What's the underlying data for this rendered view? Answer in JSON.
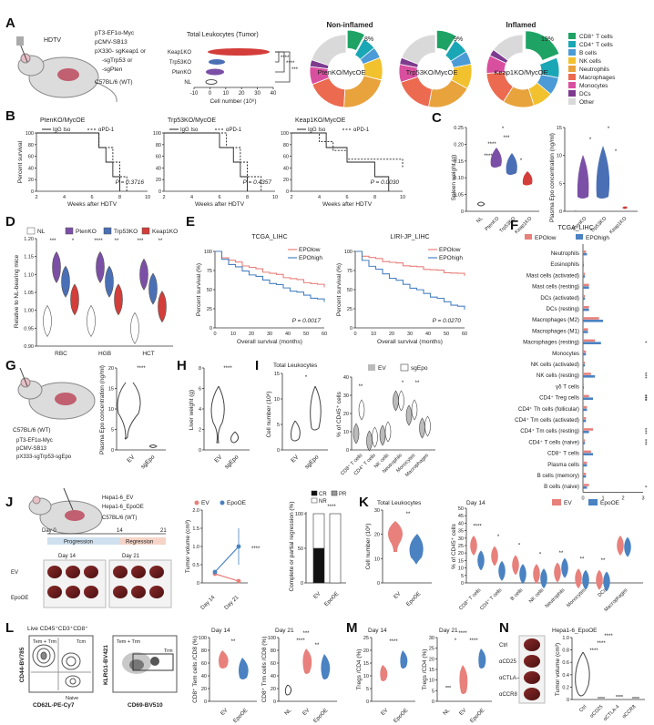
{
  "panel_labels": [
    "A",
    "B",
    "C",
    "D",
    "E",
    "F",
    "G",
    "H",
    "I",
    "J",
    "K",
    "L",
    "M",
    "N"
  ],
  "colors": {
    "nl": "#ffffff",
    "pten": "#7b4fa6",
    "trp53": "#4a6fb5",
    "keap1": "#d33d3a",
    "ev": "#e8807b",
    "epo": "#4a82c2",
    "grey": "#999999"
  },
  "panel_a": {
    "hdtv": "HDTV",
    "bullets": [
      "pT3-EF1α-Myc",
      "pCMV-SB13",
      "pX330- sgKeap1 or",
      "-sgTrp53 or",
      "-sgPten"
    ],
    "strain": "C57BL/6 (WT)",
    "chart_title": "Total Leukocytes (Tumor)",
    "rows": [
      "Keap1KO",
      "Trp53KO",
      "PtenKO",
      "NL"
    ],
    "xlabel": "Cell number (10⁶)",
    "xticks": [
      "-10",
      "0",
      "10",
      "20",
      "30",
      "40"
    ],
    "sig": [
      "****",
      "****",
      "***"
    ],
    "donut_titles": [
      "Non-inflamed",
      "Inflamed"
    ],
    "donut_labels": [
      "PtenKO/MycOE",
      "Trp53KO/MycOE",
      "Keap1KO/MycOE"
    ],
    "donut_pct": [
      "8%",
      "9%",
      "19%"
    ],
    "legend": [
      {
        "name": "CD8⁺ T cells",
        "color": "#1fa365"
      },
      {
        "name": "CD4⁺ T cells",
        "color": "#1aa7b5"
      },
      {
        "name": "B cells",
        "color": "#4b9bd6"
      },
      {
        "name": "NK cells",
        "color": "#f2c12e"
      },
      {
        "name": "Neutrophils",
        "color": "#e8a33d"
      },
      {
        "name": "Macrophages",
        "color": "#ec6a4f"
      },
      {
        "name": "Monocytes",
        "color": "#d94fa0"
      },
      {
        "name": "DCs",
        "color": "#7d3b8e"
      },
      {
        "name": "Other",
        "color": "#d9d9d9"
      }
    ]
  },
  "chart_data": [
    {
      "type": "pie",
      "id": "donut1",
      "title": "PtenKO/MycOE",
      "categories": [
        "CD8+ T cells",
        "CD4+ T cells",
        "B cells",
        "NK cells",
        "Neutrophils",
        "Macrophages",
        "Monocytes",
        "DCs",
        "Other"
      ],
      "values": [
        8,
        6,
        5,
        10,
        22,
        18,
        8,
        3,
        20
      ]
    },
    {
      "type": "pie",
      "id": "donut2",
      "title": "Trp53KO/MycOE",
      "categories": [
        "CD8+ T cells",
        "CD4+ T cells",
        "B cells",
        "NK cells",
        "Neutrophils",
        "Macrophages",
        "Monocytes",
        "DCs",
        "Other"
      ],
      "values": [
        9,
        7,
        6,
        11,
        20,
        17,
        8,
        3,
        19
      ]
    },
    {
      "type": "pie",
      "id": "donut3",
      "title": "Keap1KO/MycOE",
      "categories": [
        "CD8+ T cells",
        "CD4+ T cells",
        "B cells",
        "NK cells",
        "Neutrophils",
        "Macrophages",
        "Monocytes",
        "DCs",
        "Other"
      ],
      "values": [
        19,
        9,
        8,
        9,
        14,
        15,
        8,
        3,
        15
      ]
    },
    {
      "type": "line",
      "id": "survB",
      "titles": [
        "PtenKO/MycOE",
        "Trp53KO/MycOE",
        "Keap1KO/MycOE"
      ],
      "series_names": [
        "IgG Iso",
        "αPD-1"
      ],
      "ylabel": "Percent survival",
      "xlabel": "Weeks after HDTV",
      "xlim": [
        2,
        10
      ],
      "ylim": [
        0,
        100
      ],
      "p_values": [
        "P = 0.3716",
        "P = 0.4357",
        "P = 0.0030"
      ]
    },
    {
      "type": "line",
      "id": "survE",
      "titles": [
        "TCGA_LIHC",
        "LIRI-JP_LIHC"
      ],
      "series_names": [
        "EPOlow",
        "EPOhigh"
      ],
      "ylabel": "Percent survival (%)",
      "xlabel": "Overall survival (months)",
      "xlim": [
        0,
        60
      ],
      "ylim": [
        0,
        100
      ],
      "p_values": [
        "P = 0.0017",
        "P = 0.0270"
      ],
      "low_endpoints": [
        55,
        70
      ],
      "high_endpoints": [
        35,
        25
      ]
    },
    {
      "type": "bar",
      "id": "barJ",
      "categories": [
        "EV",
        "EpoOE"
      ],
      "series": [
        {
          "name": "CR",
          "values": [
            50,
            0
          ]
        },
        {
          "name": "PR",
          "values": [
            0,
            0
          ]
        },
        {
          "name": "NR",
          "values": [
            50,
            100
          ]
        }
      ],
      "ylabel": "Complete or partial regression (%)",
      "ylim": [
        0,
        100
      ]
    },
    {
      "type": "line",
      "id": "tumorJ",
      "categories": [
        "Day 14",
        "Day 21"
      ],
      "series": [
        {
          "name": "EV",
          "values": [
            0.25,
            0.05
          ]
        },
        {
          "name": "EpoOE",
          "values": [
            0.3,
            1.0
          ]
        }
      ],
      "ylabel": "Tumor volume (cm³)",
      "ylim": [
        0,
        2.0
      ]
    },
    {
      "type": "bar",
      "id": "cibersortF",
      "title": "TCGA_LIHC",
      "categories": [
        "Neutrophils",
        "Eosinophils",
        "Mast cells (activated)",
        "Mast cells (resting)",
        "DCs (activated)",
        "DCs (resting)",
        "Macrophages (M2)",
        "Macrophages (M1)",
        "Macrophages (resting)",
        "Monocytes",
        "NK cells (activated)",
        "NK cells (resting)",
        "γδ T cells",
        "CD4⁺ Treg cells",
        "CD4⁺ Th cells (follicular)",
        "CD4⁺ Tm cells (activated)",
        "CD4⁺ Tm cells (resting)",
        "CD4⁺ T cells (naive)",
        "CD8⁺ T cells",
        "Plasma cells",
        "B cells (memory)",
        "B cells (naive)"
      ],
      "series": [
        {
          "name": "EPOlow",
          "values": [
            0.15,
            0.05,
            0.1,
            0.3,
            0.1,
            0.3,
            0.8,
            0.25,
            0.6,
            0.15,
            0.1,
            0.4,
            0.05,
            0.3,
            0.2,
            0.15,
            0.5,
            0.1,
            0.4,
            0.2,
            0.15,
            0.3
          ]
        },
        {
          "name": "EPOhigh",
          "values": [
            0.2,
            0.05,
            0.1,
            0.3,
            0.1,
            0.3,
            1.0,
            0.25,
            0.9,
            0.15,
            0.1,
            0.6,
            0.05,
            0.5,
            0.2,
            0.15,
            0.3,
            0.1,
            0.5,
            0.2,
            0.15,
            0.2
          ]
        }
      ],
      "xticks": [
        "0",
        "1",
        "2",
        "3"
      ],
      "xlim": [
        0,
        3
      ]
    }
  ],
  "panel_c": {
    "ylabel1": "Spleen weight (g)",
    "ylabel2": "Plasma Epo concentration (ng/ml)",
    "yticks1": [
      "0",
      "0.05",
      "0.10",
      "0.15",
      "0.20",
      "0.25"
    ],
    "yticks2": [
      "0",
      "5",
      "10",
      "15"
    ],
    "groups1": [
      "NL",
      "PtenKO",
      "Trp53KO",
      "Keap1KO"
    ],
    "groups2": [
      "PtenKO",
      "Trp53KO",
      "Keap1KO"
    ],
    "sig1": [
      "*",
      "***",
      "****",
      "****",
      "*"
    ],
    "sig2": [
      "*",
      "*",
      "*"
    ]
  },
  "panel_d": {
    "legend": [
      "NL",
      "PtenKO",
      "Trp53KO",
      "Keap1KO"
    ],
    "ylabel": "Relative to NL-bearing mice",
    "yticks": [
      "0.90",
      "0.95",
      "1.00",
      "1.05",
      "1.10",
      "1.15",
      "1.20"
    ],
    "groups": [
      "RBC",
      "HGB",
      "HCT"
    ],
    "sig": [
      "***",
      "*",
      "****",
      "**",
      "***",
      "**"
    ]
  },
  "panel_e": {
    "legend_low": "EPOlow",
    "legend_high": "EPOhigh"
  },
  "panel_f": {
    "legend": [
      "EPOlow",
      "EPOhigh"
    ],
    "sig": [
      "*",
      "***",
      "***",
      "***",
      "***",
      "***",
      "*"
    ]
  },
  "panel_g": {
    "strain": "C57BL/6 (WT)",
    "bullets": [
      "pT3-EF1α-Myc",
      "pCMV-SB13",
      "pX333-sgTrp53-sgEpo"
    ],
    "ylabel": "Plasma Epo concentration (ng/ml)",
    "yticks": [
      "0",
      "5",
      "10",
      "15",
      "20"
    ],
    "groups": [
      "EV",
      "sgEpo"
    ],
    "sig": "****"
  },
  "panel_h": {
    "ylabel": "Liver weight (g)",
    "yticks": [
      "0",
      "2",
      "4",
      "6",
      "8"
    ],
    "groups": [
      "EV",
      "sgEpo"
    ],
    "sig": "****"
  },
  "panel_i": {
    "title1": "Total Leukocytes",
    "ylabel1": "Cell number (10⁶)",
    "yticks1": [
      "0",
      "5",
      "10",
      "15"
    ],
    "groups1": [
      "EV",
      "sgEpo"
    ],
    "sig1": "*",
    "legend": [
      "EV",
      "sgEpo"
    ],
    "ylabel2": "% of CD45⁺ cells",
    "yticks2": [
      "0",
      "10",
      "20",
      "30",
      "40"
    ],
    "cats": [
      "CD8⁺ T cells",
      "CD4⁺ T cells",
      "NK cells",
      "Neutrophils",
      "Monocytes",
      "Macrophages"
    ],
    "sig2": [
      "**",
      "*",
      "**"
    ]
  },
  "panel_j": {
    "cells": [
      "Hepa1-6_EV",
      "Hepa1-6_EpoOE"
    ],
    "strain": "C57BL/6 (WT)",
    "timeline": [
      "Day 0",
      "14",
      "21"
    ],
    "phases": [
      "Progression",
      "Regression"
    ],
    "days": [
      "Day 14",
      "Day 21"
    ],
    "rows": [
      "EV",
      "EpoOE"
    ],
    "legend": [
      "EV",
      "EpoOE"
    ],
    "ylabel": "Tumor volume (cm³)",
    "yticks": [
      "0",
      "0.5",
      "1.0",
      "1.5",
      "2.0"
    ],
    "sig": "****",
    "bar_legend": [
      "CR",
      "PR",
      "NR"
    ],
    "bar_yticks": [
      "0",
      "50",
      "100"
    ],
    "bar_sig": "****"
  },
  "panel_k": {
    "title1": "Total Leukocytes",
    "ylabel1": "Cell number (10⁶)",
    "yticks1": [
      "0",
      "10",
      "20",
      "30"
    ],
    "groups1": [
      "EV",
      "EpoOE"
    ],
    "sig1": "**",
    "title2": "Day 14",
    "legend": [
      "EV",
      "EpoOE"
    ],
    "ylabel2": "% of CD45⁺ cells",
    "yticks2": [
      "0",
      "5",
      "10",
      "15",
      "20",
      "25",
      "30",
      "35",
      "40",
      "45",
      "50"
    ],
    "cats": [
      "CD8⁺ T cells",
      "CD4⁺ T cells",
      "B cells",
      "NK cells",
      "Neutrophils",
      "Monocytes",
      "DCs",
      "Macrophages"
    ],
    "sig2": [
      "****",
      "*",
      "*",
      "*",
      "**",
      "**",
      "**"
    ]
  },
  "panel_l": {
    "gate_title": "Live CD45⁺CD3⁺CD8⁺",
    "flow1": {
      "x": "CD62L-PE-Cy7",
      "y": "CD44-BV785",
      "labels": [
        "Tem + Trm",
        "Tcm",
        "Naive"
      ]
    },
    "flow2": {
      "x": "CD69-BV510",
      "y": "KLRG1-BV421",
      "labels": [
        "Tem + Trm",
        "Trm"
      ]
    },
    "days": [
      "Day 14",
      "Day 21"
    ],
    "ylabel1": "CD8⁺ Tem cells /CD8 (%)",
    "ylabel2": "CD8⁺ Trm cells /CD8 (%)",
    "yticks": [
      "0",
      "20",
      "40",
      "60",
      "80",
      "100"
    ],
    "groups1": [
      "EV",
      "EpoOE"
    ],
    "groups2": [
      "NL",
      "EV",
      "EpoOE"
    ],
    "sig1": "**",
    "sig2": [
      "***",
      "****",
      "**"
    ]
  },
  "panel_m": {
    "days": [
      "Day 14",
      "Day 21"
    ],
    "ylabel1": "Tregs /CD4 (%)",
    "ylabel2": "Tregs /CD4 (%)",
    "yticks1": [
      "0",
      "5",
      "10",
      "15",
      "20",
      "25"
    ],
    "yticks2": [
      "0",
      "5",
      "10",
      "15",
      "20",
      "25",
      "30"
    ],
    "groups1": [
      "EV",
      "EpoOE"
    ],
    "groups2": [
      "NL",
      "EV",
      "EpoOE"
    ],
    "sig1": "****",
    "sig2": [
      "****",
      "*",
      "****"
    ]
  },
  "panel_n": {
    "title": "Hepa1-6_EpoOE",
    "rows": [
      "Ctrl",
      "αCD25",
      "αCTLA-4",
      "αCCR8"
    ],
    "ylabel": "Tumor volume (cm³)",
    "yticks": [
      "0",
      "0.2",
      "0.4",
      "0.6",
      "0.8",
      "1.0"
    ],
    "groups": [
      "Ctrl",
      "αCD25",
      "αCTLA-4",
      "αCCR8"
    ],
    "sig": [
      "****",
      "****",
      "****"
    ]
  }
}
